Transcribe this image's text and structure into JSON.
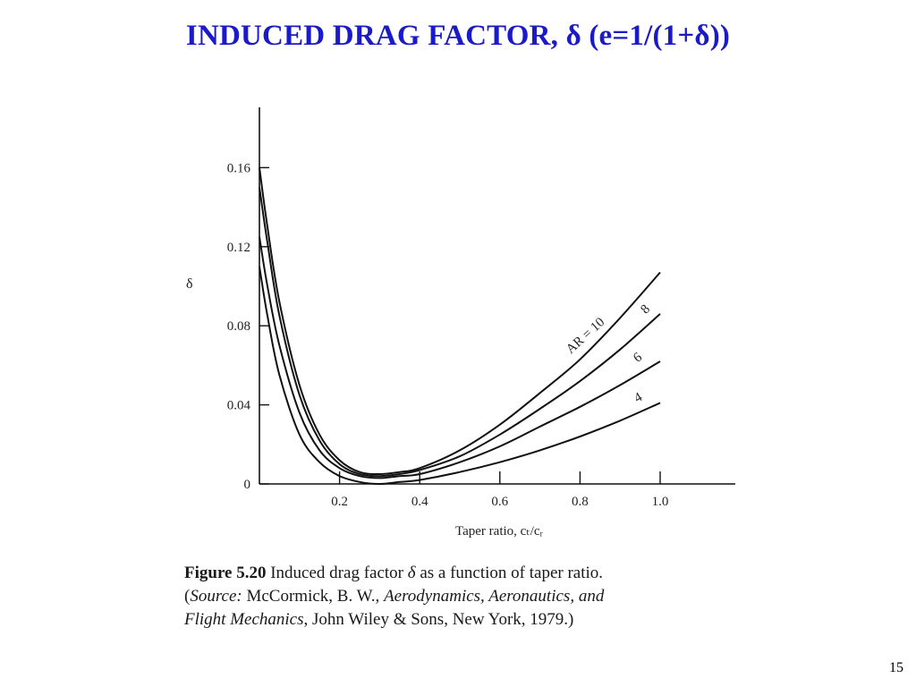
{
  "slide": {
    "title": "INDUCED DRAG FACTOR, δ (e=1/(1+δ))",
    "number": "15"
  },
  "caption": {
    "figure_number": "Figure 5.20",
    "text_before_symbol": "Induced drag factor ",
    "symbol": "δ",
    "text_after_symbol": " as a function of taper ratio.",
    "source_open": "(",
    "source_label": "Source:",
    "source_author": " McCormick, B. W., ",
    "source_title_line1": "Aerodynamics, Aeronautics, and",
    "source_title_line2": "Flight Mechanics",
    "source_publisher": ", John Wiley & Sons, New York, 1979.)"
  },
  "chart_data": {
    "type": "line",
    "title": "",
    "xlabel": "Taper ratio, cₜ/cᵣ",
    "ylabel": "δ",
    "xlim": [
      0,
      1.2
    ],
    "ylim": [
      0,
      0.18
    ],
    "x_ticks": [
      0.2,
      0.4,
      0.6,
      0.8,
      1.0
    ],
    "x_tick_labels": [
      "0.2",
      "0.4",
      "0.6",
      "0.8",
      "1.0"
    ],
    "y_ticks": [
      0,
      0.04,
      0.08,
      0.12,
      0.16
    ],
    "y_tick_labels": [
      "0",
      "0.04",
      "0.08",
      "0.12",
      "0.16"
    ],
    "grid": false,
    "line_color": "#111111",
    "series": [
      {
        "name": "AR = 10",
        "x": [
          0,
          0.02,
          0.05,
          0.1,
          0.15,
          0.2,
          0.25,
          0.3,
          0.35,
          0.4,
          0.5,
          0.6,
          0.7,
          0.8,
          0.9,
          1.0
        ],
        "y": [
          0.16,
          0.13,
          0.092,
          0.05,
          0.025,
          0.012,
          0.006,
          0.005,
          0.006,
          0.008,
          0.017,
          0.03,
          0.046,
          0.063,
          0.084,
          0.107
        ]
      },
      {
        "name": "8",
        "x": [
          0,
          0.02,
          0.05,
          0.1,
          0.15,
          0.2,
          0.25,
          0.3,
          0.35,
          0.4,
          0.5,
          0.6,
          0.7,
          0.8,
          0.9,
          1.0
        ],
        "y": [
          0.15,
          0.122,
          0.085,
          0.045,
          0.022,
          0.01,
          0.005,
          0.004,
          0.005,
          0.007,
          0.014,
          0.025,
          0.038,
          0.052,
          0.068,
          0.086
        ]
      },
      {
        "name": "6",
        "x": [
          0,
          0.02,
          0.05,
          0.1,
          0.15,
          0.2,
          0.25,
          0.3,
          0.35,
          0.4,
          0.5,
          0.6,
          0.7,
          0.8,
          0.9,
          1.0
        ],
        "y": [
          0.125,
          0.1,
          0.07,
          0.036,
          0.017,
          0.008,
          0.004,
          0.003,
          0.004,
          0.005,
          0.011,
          0.019,
          0.029,
          0.039,
          0.05,
          0.062
        ]
      },
      {
        "name": "4",
        "x": [
          0,
          0.02,
          0.05,
          0.1,
          0.15,
          0.2,
          0.25,
          0.3,
          0.35,
          0.4,
          0.5,
          0.6,
          0.7,
          0.8,
          0.9,
          1.0
        ],
        "y": [
          0.11,
          0.085,
          0.055,
          0.025,
          0.011,
          0.004,
          0.001,
          0.0,
          0.001,
          0.002,
          0.006,
          0.011,
          0.017,
          0.024,
          0.032,
          0.041
        ]
      }
    ]
  }
}
